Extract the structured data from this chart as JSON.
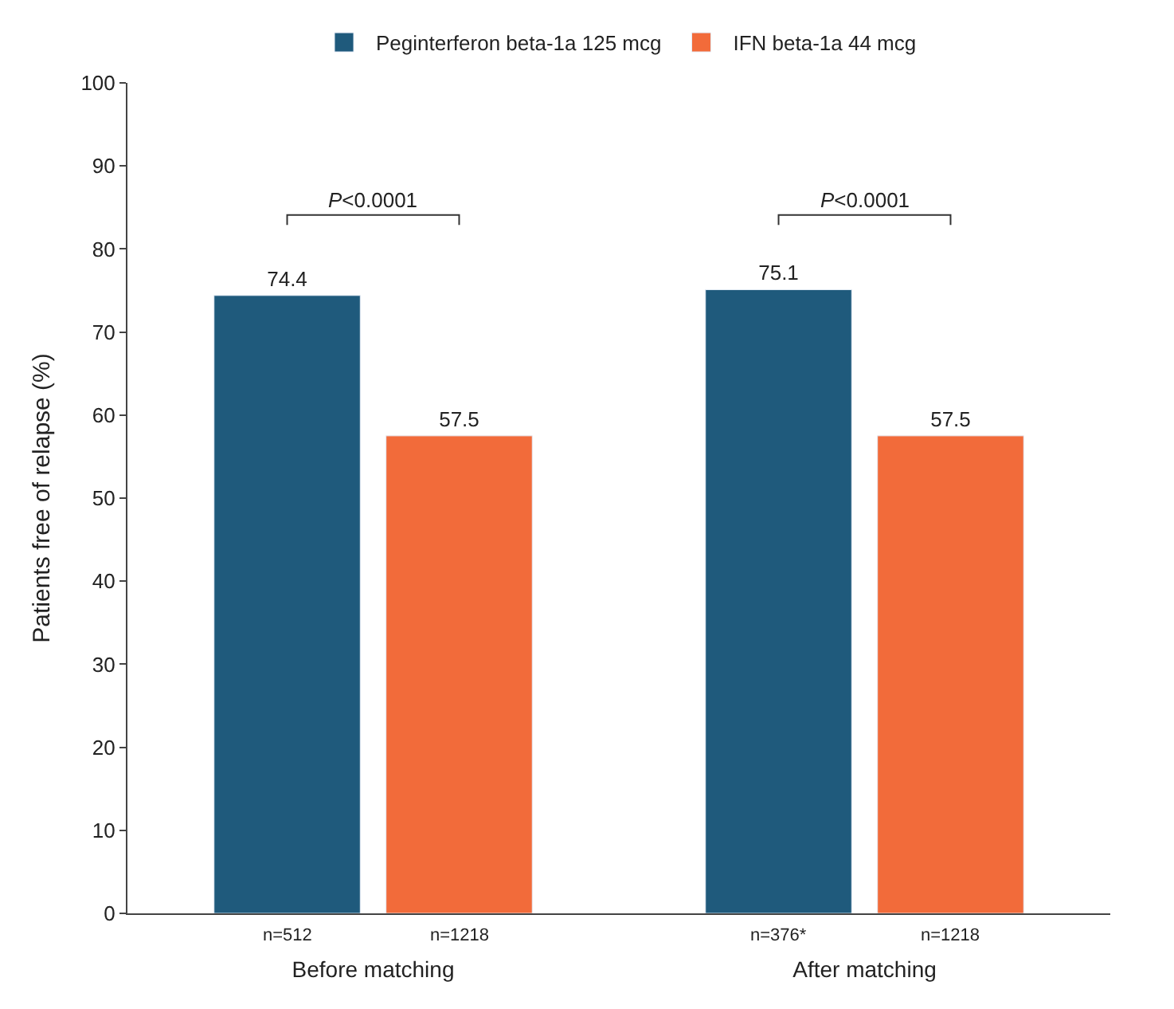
{
  "chart_data": {
    "type": "bar",
    "ylabel": "Patients free of relapse (%)",
    "categories": [
      "Before matching",
      "After matching"
    ],
    "series": [
      {
        "name": "Peginterferon beta-1a 125 mcg",
        "color": "#1f5a7c",
        "values": [
          74.4,
          75.1
        ]
      },
      {
        "name": "IFN beta-1a 44 mcg",
        "color": "#f26b3a",
        "values": [
          57.5,
          57.5
        ]
      }
    ],
    "data_labels": true,
    "ylim": [
      0,
      100
    ],
    "yticks": [
      0,
      10,
      20,
      30,
      40,
      50,
      60,
      70,
      80,
      90,
      100
    ],
    "legend": "top",
    "annotations": [
      "P<0.0001",
      "P<0.0001",
      "n=512",
      "n=1218",
      "n=376*",
      "n=1218"
    ]
  }
}
